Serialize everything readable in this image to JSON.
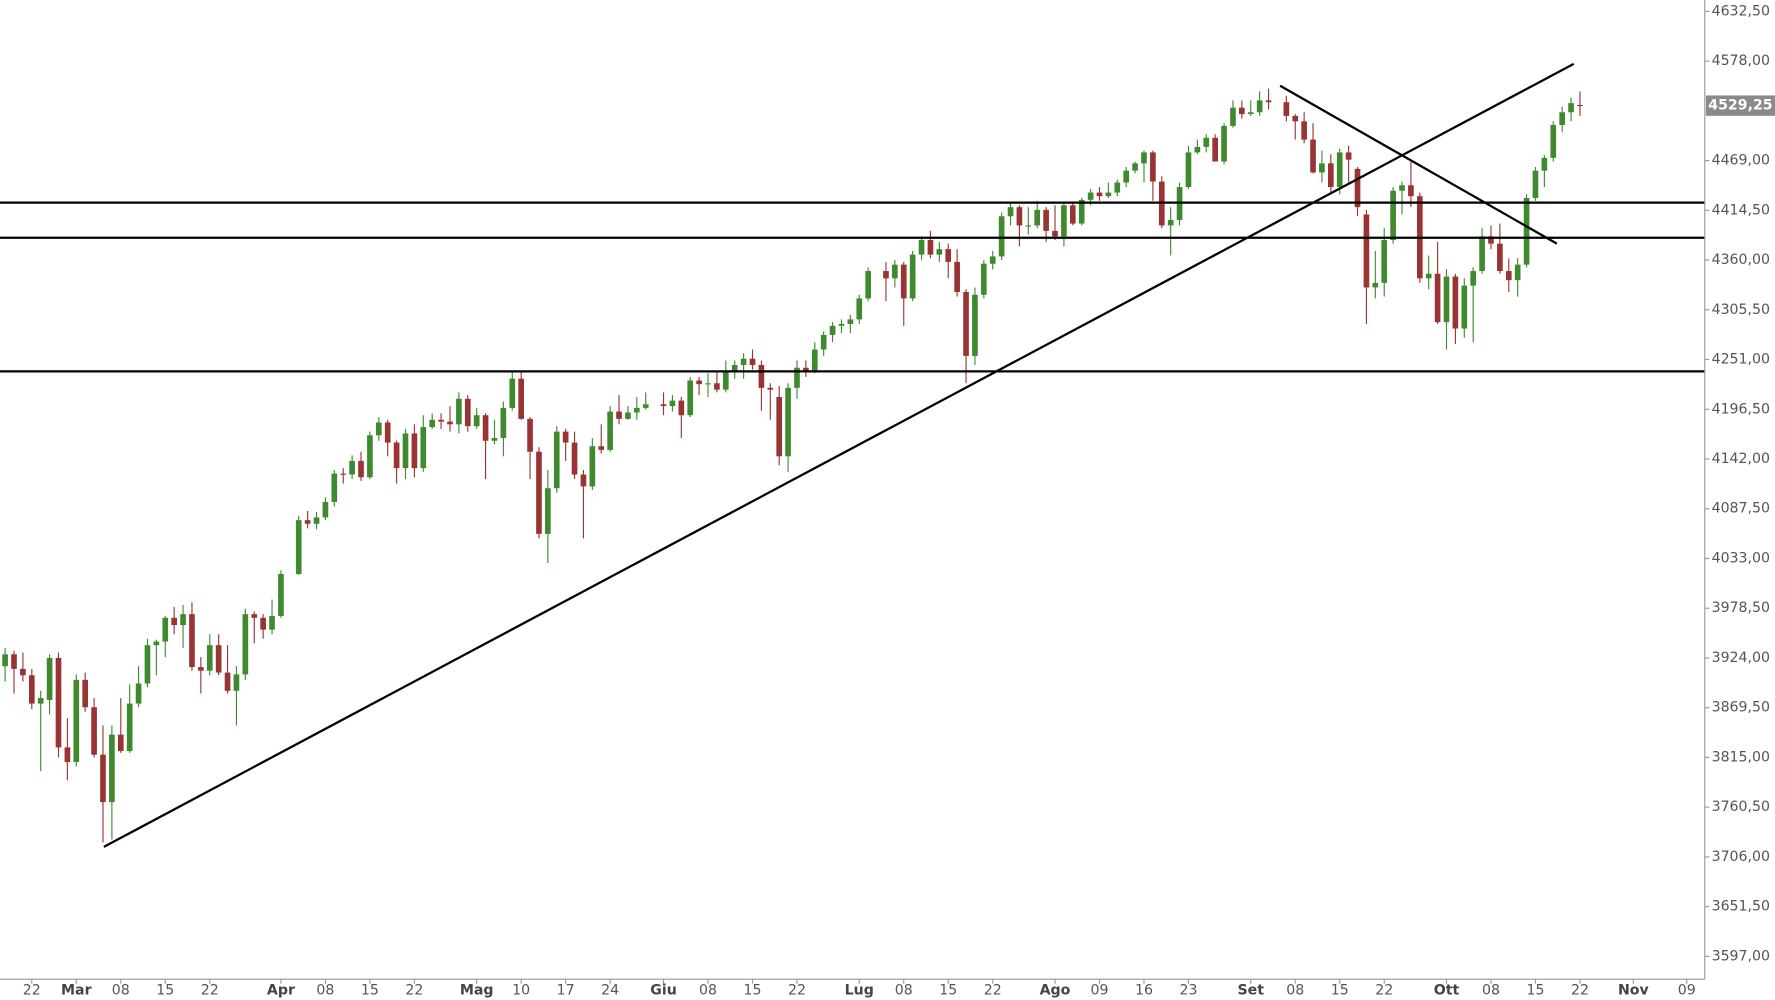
{
  "chart_data": {
    "type": "candlestick",
    "up_color": "#3f8a2f",
    "down_color": "#9a3434",
    "line_color": "#000000",
    "ylim": [
      3572,
      4645
    ],
    "yticks": [
      {
        "value": 4632.5,
        "label": "4632,50"
      },
      {
        "value": 4578,
        "label": "4578,00"
      },
      {
        "value": 4469,
        "label": "4469,00"
      },
      {
        "value": 4414.5,
        "label": "4414,50"
      },
      {
        "value": 4360,
        "label": "4360,00"
      },
      {
        "value": 4305.5,
        "label": "4305,50"
      },
      {
        "value": 4251,
        "label": "4251,00"
      },
      {
        "value": 4196.5,
        "label": "4196,50"
      },
      {
        "value": 4142,
        "label": "4142,00"
      },
      {
        "value": 4087.5,
        "label": "4087,50"
      },
      {
        "value": 4033,
        "label": "4033,00"
      },
      {
        "value": 3978.5,
        "label": "3978,50"
      },
      {
        "value": 3924,
        "label": "3924,00"
      },
      {
        "value": 3869.5,
        "label": "3869,50"
      },
      {
        "value": 3815,
        "label": "3815,00"
      },
      {
        "value": 3760.5,
        "label": "3760,50"
      },
      {
        "value": 3706,
        "label": "3706,00"
      },
      {
        "value": 3651.5,
        "label": "3651,50"
      },
      {
        "value": 3597,
        "label": "3597,00"
      }
    ],
    "categories": [
      null,
      null,
      null,
      "22",
      null,
      null,
      null,
      null,
      "Mar",
      null,
      null,
      null,
      null,
      "08",
      null,
      null,
      null,
      null,
      "15",
      null,
      null,
      null,
      null,
      "22",
      null,
      null,
      null,
      null,
      null,
      null,
      null,
      "Apr",
      null,
      null,
      null,
      null,
      "08",
      null,
      null,
      null,
      null,
      "15",
      null,
      null,
      null,
      null,
      "22",
      null,
      null,
      null,
      null,
      null,
      null,
      "Mag",
      null,
      null,
      null,
      null,
      "10",
      null,
      null,
      null,
      null,
      "17",
      null,
      null,
      null,
      null,
      "24",
      null,
      null,
      null,
      null,
      null,
      "Giu",
      null,
      null,
      null,
      null,
      "08",
      null,
      null,
      null,
      null,
      "15",
      null,
      null,
      null,
      null,
      "22",
      null,
      null,
      null,
      null,
      null,
      null,
      "Lug",
      null,
      null,
      null,
      null,
      "08",
      null,
      null,
      null,
      null,
      "15",
      null,
      null,
      null,
      null,
      "22",
      null,
      null,
      null,
      null,
      null,
      null,
      "Ago",
      null,
      null,
      null,
      null,
      "09",
      null,
      null,
      null,
      null,
      "16",
      null,
      null,
      null,
      null,
      "23",
      null,
      null,
      null,
      null,
      null,
      null,
      "Set",
      null,
      null,
      null,
      null,
      "08",
      null,
      null,
      null,
      null,
      "15",
      null,
      null,
      null,
      null,
      "22",
      null,
      null,
      null,
      null,
      null,
      null,
      "Ott",
      null,
      null,
      null,
      null,
      "08",
      null,
      null,
      null,
      null,
      "15",
      null,
      null,
      null,
      null,
      "22",
      null,
      null,
      null,
      null,
      null,
      "Nov",
      null,
      null,
      null,
      null,
      null,
      "09"
    ],
    "candles": {
      "open": [
        3915,
        3928,
        3912,
        3905,
        3874,
        3878,
        3924,
        3826,
        3810,
        3900,
        3870,
        3818,
        3766,
        3840,
        3822,
        3874,
        3896,
        3938,
        3942,
        3968,
        3960,
        3972,
        3914,
        3910,
        3938,
        3908,
        3888,
        3906,
        3972,
        3968,
        3955,
        3970,
        null,
        4016,
        4075,
        4071,
        4078,
        4095,
        4126,
        4125,
        4140,
        4122,
        4168,
        4182,
        4160,
        4132,
        4170,
        4132,
        4177,
        4185,
        4183,
        4180,
        4208,
        4178,
        4190,
        4162,
        4165,
        4198,
        4230,
        4186,
        4150,
        4060,
        4110,
        4172,
        4160,
        4125,
        4112,
        4156,
        4152,
        4194,
        4186,
        4193,
        4198,
        null,
        4202,
        4200,
        4206,
        4190,
        4228,
        4224,
        4225,
        4218,
        4238,
        4245,
        4252,
        4245,
        4220,
        4210,
        4145,
        4220,
        4242,
        4238,
        4262,
        4278,
        4288,
        4290,
        4295,
        4318,
        null,
        4348,
        4340,
        4355,
        4318,
        4366,
        4382,
        4366,
        4372,
        4358,
        4325,
        4255,
        4322,
        4356,
        4364,
        4408,
        4418,
        4398,
        4398,
        4415,
        4392,
        4386,
        4420,
        4400,
        4426,
        4434,
        4430,
        4434,
        4445,
        4458,
        4466,
        4478,
        4446,
        4398,
        4404,
        4440,
        4478,
        4484,
        4494,
        4468,
        4507,
        4527,
        4520,
        4522,
        4535,
        null,
        4533,
        4518,
        4512,
        4492,
        4456,
        4466,
        4440,
        4478,
        4460,
        4410,
        4330,
        4335,
        4382,
        4436,
        4442,
        4430,
        4340,
        4345,
        4292,
        4342,
        4285,
        4332,
        4348,
        4386,
        4378,
        4348,
        4338,
        4355,
        4428,
        4458,
        4472,
        4508,
        4522,
        4530,
        null,
        null,
        null,
        null,
        null,
        null,
        null,
        null,
        null,
        null,
        null,
        null
      ],
      "high": [
        3935,
        3932,
        3930,
        3912,
        3888,
        3928,
        3930,
        3858,
        3906,
        3908,
        3880,
        3850,
        3850,
        3880,
        3895,
        3915,
        3945,
        3944,
        3970,
        3980,
        3982,
        3985,
        3925,
        3950,
        3950,
        3938,
        3915,
        3978,
        3975,
        3972,
        3988,
        4020,
        null,
        4080,
        4085,
        4084,
        4100,
        4130,
        4132,
        4146,
        4150,
        4172,
        4188,
        4185,
        4162,
        4175,
        4180,
        4190,
        4192,
        4192,
        4200,
        4215,
        4212,
        4198,
        4192,
        4185,
        4205,
        4238,
        4238,
        4188,
        4155,
        4130,
        4178,
        4175,
        4172,
        4130,
        4165,
        4180,
        4200,
        4212,
        4200,
        4210,
        4215,
        null,
        4215,
        4212,
        4210,
        4232,
        4232,
        4236,
        4238,
        4250,
        4250,
        4258,
        4262,
        4250,
        4225,
        4222,
        4225,
        4250,
        4250,
        4270,
        4282,
        4292,
        4295,
        4300,
        4322,
        4352,
        null,
        4358,
        4360,
        4358,
        4370,
        4386,
        4392,
        4380,
        4378,
        4372,
        4328,
        4330,
        4360,
        4370,
        4412,
        4422,
        4420,
        4418,
        4425,
        4418,
        4420,
        4422,
        4422,
        4428,
        4438,
        4440,
        4445,
        4448,
        4462,
        4468,
        4480,
        4480,
        4452,
        4418,
        4445,
        4485,
        4492,
        4498,
        4498,
        4510,
        4535,
        4535,
        4535,
        4545,
        4548,
        null,
        4540,
        4520,
        4522,
        4510,
        4480,
        4476,
        4482,
        4485,
        4462,
        4415,
        4370,
        4395,
        4440,
        4446,
        4470,
        4434,
        4365,
        4380,
        4350,
        4345,
        4340,
        4352,
        4395,
        4398,
        4400,
        4362,
        4362,
        4432,
        4462,
        4475,
        4512,
        4528,
        4538,
        4545,
        null,
        null,
        null,
        null,
        null,
        null,
        null,
        null,
        null,
        null,
        null,
        null
      ],
      "low": [
        3898,
        3885,
        3898,
        3868,
        3800,
        3862,
        3815,
        3790,
        3805,
        3865,
        3815,
        3722,
        3725,
        3820,
        3820,
        3870,
        3892,
        3905,
        3925,
        3950,
        3935,
        3910,
        3885,
        3905,
        3905,
        3885,
        3850,
        3900,
        3940,
        3945,
        3950,
        3968,
        null,
        4015,
        4066,
        4065,
        4075,
        4090,
        4115,
        4120,
        4118,
        4120,
        4162,
        4145,
        4115,
        4120,
        4122,
        4128,
        4175,
        4175,
        4172,
        4170,
        4172,
        4175,
        4120,
        4158,
        4145,
        4195,
        4185,
        4120,
        4055,
        4028,
        4105,
        4140,
        4120,
        4055,
        4108,
        4148,
        4150,
        4180,
        4185,
        4185,
        4196,
        null,
        4190,
        4194,
        4165,
        4188,
        4212,
        4210,
        4215,
        4215,
        4230,
        4230,
        4240,
        4195,
        4185,
        4135,
        4128,
        4208,
        4232,
        4236,
        4255,
        4270,
        4280,
        4280,
        4290,
        4315,
        null,
        4315,
        4330,
        4288,
        4315,
        4360,
        4362,
        4358,
        4340,
        4320,
        4225,
        4245,
        4318,
        4350,
        4360,
        4398,
        4375,
        4388,
        4395,
        4380,
        4382,
        4375,
        4398,
        4398,
        4420,
        4425,
        4428,
        4430,
        4440,
        4455,
        4445,
        4425,
        4395,
        4365,
        4398,
        4438,
        4476,
        4478,
        4468,
        4465,
        4505,
        4515,
        4518,
        4518,
        4525,
        null,
        4512,
        4492,
        4488,
        4455,
        4445,
        4434,
        4432,
        4445,
        4408,
        4290,
        4318,
        4320,
        4378,
        4410,
        4418,
        4335,
        4328,
        4290,
        4262,
        4268,
        4275,
        4270,
        4345,
        4372,
        4345,
        4325,
        4320,
        4352,
        4425,
        4440,
        4468,
        4500,
        4512,
        4518,
        null,
        null,
        null,
        null,
        null,
        null,
        null,
        null,
        null,
        null,
        null,
        null
      ],
      "close": [
        3928,
        3912,
        3905,
        3874,
        3880,
        3924,
        3826,
        3810,
        3900,
        3870,
        3818,
        3766,
        3840,
        3822,
        3874,
        3896,
        3938,
        3942,
        3968,
        3960,
        3972,
        3914,
        3910,
        3938,
        3908,
        3888,
        3906,
        3972,
        3968,
        3955,
        3970,
        4016,
        null,
        4075,
        4071,
        4078,
        4095,
        4126,
        4125,
        4140,
        4122,
        4168,
        4182,
        4160,
        4132,
        4170,
        4132,
        4177,
        4185,
        4183,
        4180,
        4208,
        4178,
        4190,
        4162,
        4165,
        4198,
        4230,
        4186,
        4150,
        4060,
        4110,
        4172,
        4160,
        4125,
        4112,
        4156,
        4152,
        4194,
        4186,
        4193,
        4198,
        4202,
        null,
        4200,
        4206,
        4190,
        4228,
        4224,
        4225,
        4218,
        4238,
        4245,
        4252,
        4245,
        4220,
        4218,
        4145,
        4220,
        4242,
        4238,
        4262,
        4278,
        4288,
        4290,
        4295,
        4318,
        4348,
        null,
        4340,
        4355,
        4318,
        4366,
        4382,
        4366,
        4372,
        4358,
        4325,
        4255,
        4322,
        4356,
        4364,
        4408,
        4418,
        4398,
        4398,
        4415,
        4392,
        4386,
        4420,
        4400,
        4426,
        4434,
        4430,
        4434,
        4445,
        4458,
        4466,
        4478,
        4446,
        4398,
        4404,
        4440,
        4478,
        4484,
        4494,
        4468,
        4507,
        4527,
        4520,
        4522,
        4535,
        4533,
        null,
        4518,
        4512,
        4492,
        4456,
        4466,
        4440,
        4478,
        4470,
        4418,
        4330,
        4335,
        4382,
        4436,
        4442,
        4430,
        4340,
        4345,
        4292,
        4342,
        4285,
        4332,
        4348,
        4386,
        4378,
        4348,
        4338,
        4355,
        4428,
        4458,
        4472,
        4508,
        4522,
        4532,
        4529.25,
        null,
        null,
        null,
        null,
        null,
        null,
        null,
        null,
        null,
        null,
        null,
        null
      ]
    },
    "last_label": "4529,25",
    "levels": [
      4423,
      4384.5,
      4238
    ],
    "trendlines": [
      {
        "x": [
          11.1,
          176.3
        ],
        "y": [
          3717,
          4575
        ]
      },
      {
        "x": [
          143.3,
          174.4
        ],
        "y": [
          4551,
          4378
        ]
      }
    ]
  }
}
